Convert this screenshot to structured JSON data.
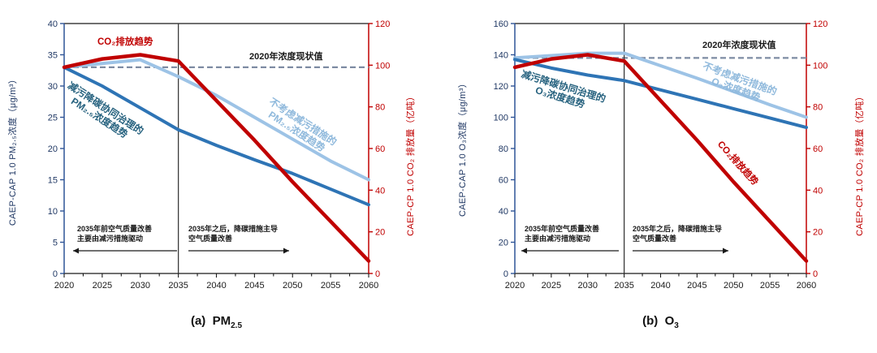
{
  "colors": {
    "co2_red": "#C00000",
    "coordinated_blue": "#2E74B5",
    "no_control_blue": "#9DC3E6",
    "coordinated_label_teal": "#25617E",
    "no_control_label_blue": "#8FB9DC",
    "navy_axis": "#203864",
    "left_axis_line_blue": "#2F5597",
    "reference_dash_gray": "#7E8CA3",
    "black_text": "#1A1A1A"
  },
  "chart_data": [
    {
      "type": "line",
      "pollutant": "PM2.5",
      "caption": {
        "prefix": "(a)  PM",
        "sub": "2.5"
      },
      "x": [
        2020,
        2025,
        2030,
        2035,
        2040,
        2045,
        2050,
        2055,
        2060
      ],
      "x_axis": {
        "min": 2020,
        "max": 2060,
        "tick_step": 5,
        "minor_tick_step": 2.5
      },
      "left_axis": {
        "title": "CAEP-CAP 1.0 PM₂.₅浓度（μg/m³）",
        "min": 0,
        "max": 40,
        "tick_step": 5,
        "color": "#203864"
      },
      "right_axis": {
        "title": "CAEP-CP 1.0 CO₂ 排放量（亿吨）",
        "min": 0,
        "max": 120,
        "tick_step": 20,
        "color": "#C00000"
      },
      "reference_line": {
        "label": "2020年浓度现状值",
        "axis": "left",
        "value": 33
      },
      "divider_year": 2035,
      "series": [
        {
          "id": "pm25-no-control",
          "name": "不考虑减污措施的PM₂.₅浓度趋势",
          "axis": "left",
          "color": "#9DC3E6",
          "width": 4,
          "values": [
            33,
            33.6,
            34.2,
            31.5,
            28.5,
            25,
            21.5,
            18,
            15
          ]
        },
        {
          "id": "pm25-coordinated",
          "name": "减污降碳协同治理的PM₂.₅浓度趋势",
          "axis": "left",
          "color": "#2E74B5",
          "width": 4,
          "values": [
            33,
            30,
            26.5,
            23,
            20.5,
            18.2,
            16,
            13.5,
            11
          ]
        },
        {
          "id": "co2-emissions",
          "name": "CO₂排放趋势",
          "axis": "right",
          "color": "#C00000",
          "width": 4.5,
          "values": [
            99,
            103,
            105,
            102,
            83,
            64,
            44,
            25,
            6
          ]
        }
      ],
      "labels": {
        "co2": "CO₂排放趋势",
        "reference": "2020年浓度现状值",
        "coordinated_line1": "减污降碳协同治理的",
        "coordinated_line2": "PM₂.₅浓度趋势",
        "no_control_line1": "不考虑减污措施的",
        "no_control_line2": "PM₂.₅浓度趋势"
      },
      "annotations": {
        "before_line1": "2035年前空气质量改善",
        "before_line2": "主要由减污措施驱动",
        "after_line1": "2035年之后，降碳措施主导",
        "after_line2": "空气质量改善"
      }
    },
    {
      "type": "line",
      "pollutant": "O3",
      "caption": {
        "prefix": "(b)  O",
        "sub": "3"
      },
      "x": [
        2020,
        2025,
        2030,
        2035,
        2040,
        2045,
        2050,
        2055,
        2060
      ],
      "x_axis": {
        "min": 2020,
        "max": 2060,
        "tick_step": 5,
        "minor_tick_step": 2.5
      },
      "left_axis": {
        "title": "CAEP-CAP 1.0 O₃浓度（μg/m³）",
        "min": 0,
        "max": 160,
        "tick_step": 20,
        "color": "#203864"
      },
      "right_axis": {
        "title": "CAEP-CP 1.0 CO₂ 排放量（亿吨）",
        "min": 0,
        "max": 120,
        "tick_step": 20,
        "color": "#C00000"
      },
      "reference_line": {
        "label": "2020年浓度现状值",
        "axis": "left",
        "value": 138
      },
      "divider_year": 2035,
      "series": [
        {
          "id": "o3-no-control",
          "name": "不考虑减污措施的O₃浓度趋势",
          "axis": "left",
          "color": "#9DC3E6",
          "width": 4,
          "values": [
            138,
            139.5,
            141,
            141,
            133,
            125,
            116.5,
            108,
            100
          ]
        },
        {
          "id": "o3-coordinated",
          "name": "减污降碳协同治理的O₃浓度趋势",
          "axis": "left",
          "color": "#2E74B5",
          "width": 4,
          "values": [
            137,
            131.5,
            127,
            123.5,
            117.5,
            111.5,
            105.5,
            99.5,
            93.5
          ]
        },
        {
          "id": "co2-emissions",
          "name": "CO₂排放趋势",
          "axis": "right",
          "color": "#C00000",
          "width": 4.5,
          "values": [
            99,
            103,
            105,
            102,
            83,
            64,
            44,
            25,
            6
          ]
        }
      ],
      "labels": {
        "co2": "CO₂排放趋势",
        "reference": "2020年浓度现状值",
        "coordinated_line1": "减污降碳协同治理的",
        "coordinated_line2": "O₃浓度趋势",
        "no_control_line1": "不考虑减污措施的",
        "no_control_line2": "O₃浓度趋势"
      },
      "annotations": {
        "before_line1": "2035年前空气质量改善",
        "before_line2": "主要由减污措施驱动",
        "after_line1": "2035年之后，降碳措施主导",
        "after_line2": "空气质量改善"
      }
    }
  ]
}
